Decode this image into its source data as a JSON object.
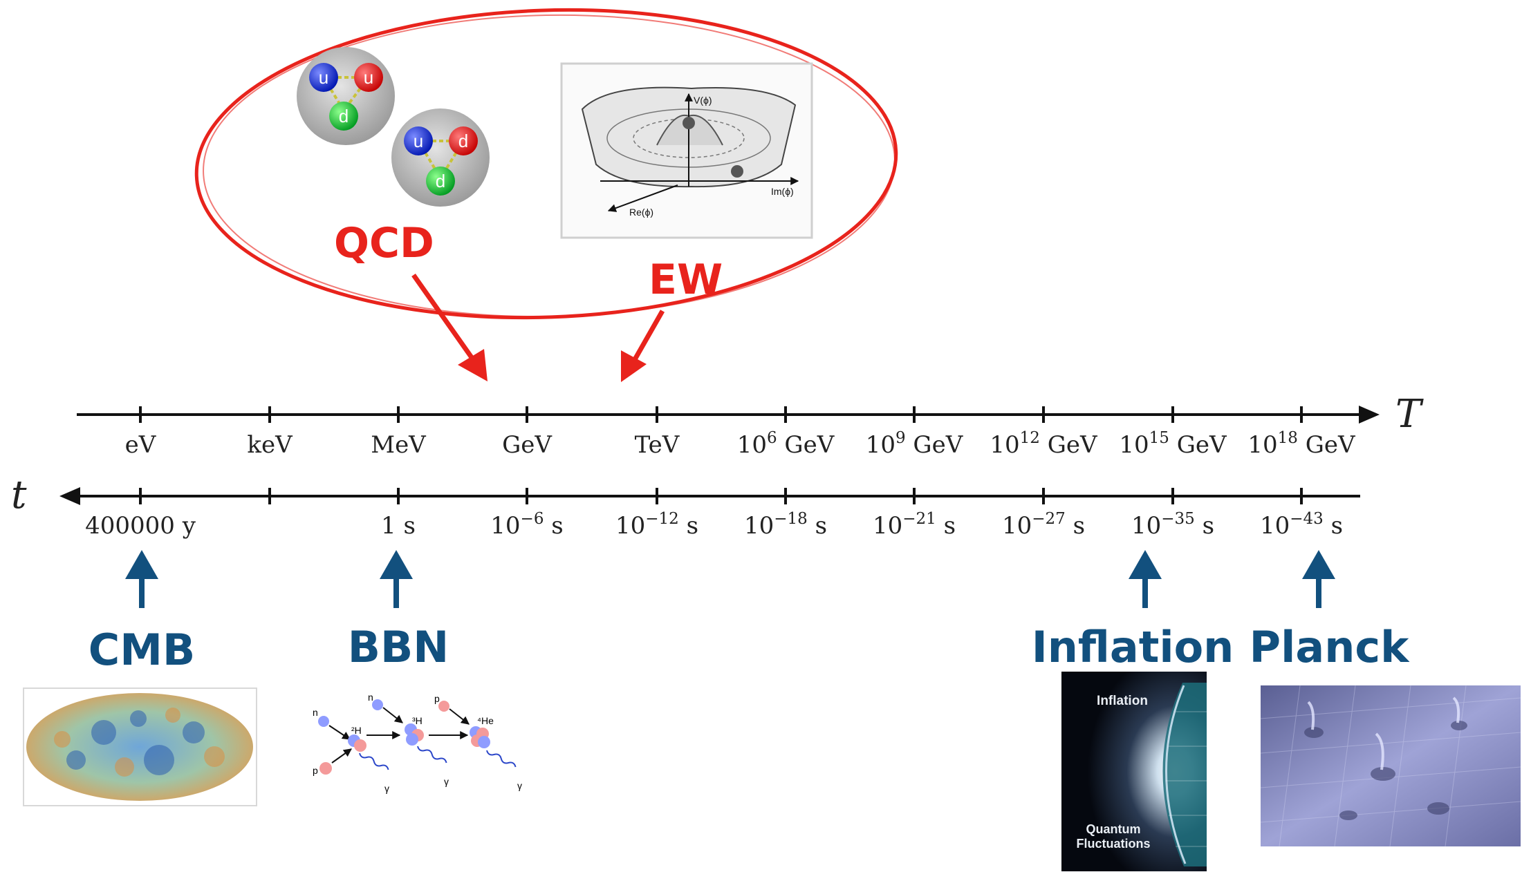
{
  "axes": {
    "temperature": {
      "label": "T",
      "ticks": [
        "eV",
        "keV",
        "MeV",
        "GeV",
        "TeV",
        "10^6 GeV",
        "10^9 GeV",
        "10^12 GeV",
        "10^15 GeV",
        "10^18 GeV"
      ]
    },
    "time": {
      "label": "t",
      "ticks": [
        "400000 y",
        "",
        "1 s",
        "10^-6 s",
        "10^-12 s",
        "10^-18 s",
        "10^-21 s",
        "10^-27 s",
        "10^-35 s",
        "10^-43 s"
      ]
    }
  },
  "phase_transitions": {
    "qcd": "QCD",
    "ew": "EW",
    "quark_labels": [
      "u",
      "u",
      "d",
      "u",
      "d",
      "d"
    ],
    "potential_labels": {
      "v": "V(ϕ)",
      "im": "Im(ϕ)",
      "re": "Re(ϕ)"
    }
  },
  "epochs": [
    {
      "key": "cmb",
      "label": "CMB"
    },
    {
      "key": "bbn",
      "label": "BBN"
    },
    {
      "key": "inflation",
      "label": "Inflation"
    },
    {
      "key": "planck",
      "label": "Planck"
    }
  ],
  "bbn_labels": [
    "n",
    "²H",
    "p",
    "n",
    "³H",
    "p",
    "⁴He",
    "γ",
    "γ",
    "γ"
  ],
  "inflation_image": {
    "top": "Inflation",
    "bottom_1": "Quantum",
    "bottom_2": "Fluctuations"
  },
  "colors": {
    "red": "#e8231c",
    "blue": "#12507e",
    "axis": "#111111"
  }
}
